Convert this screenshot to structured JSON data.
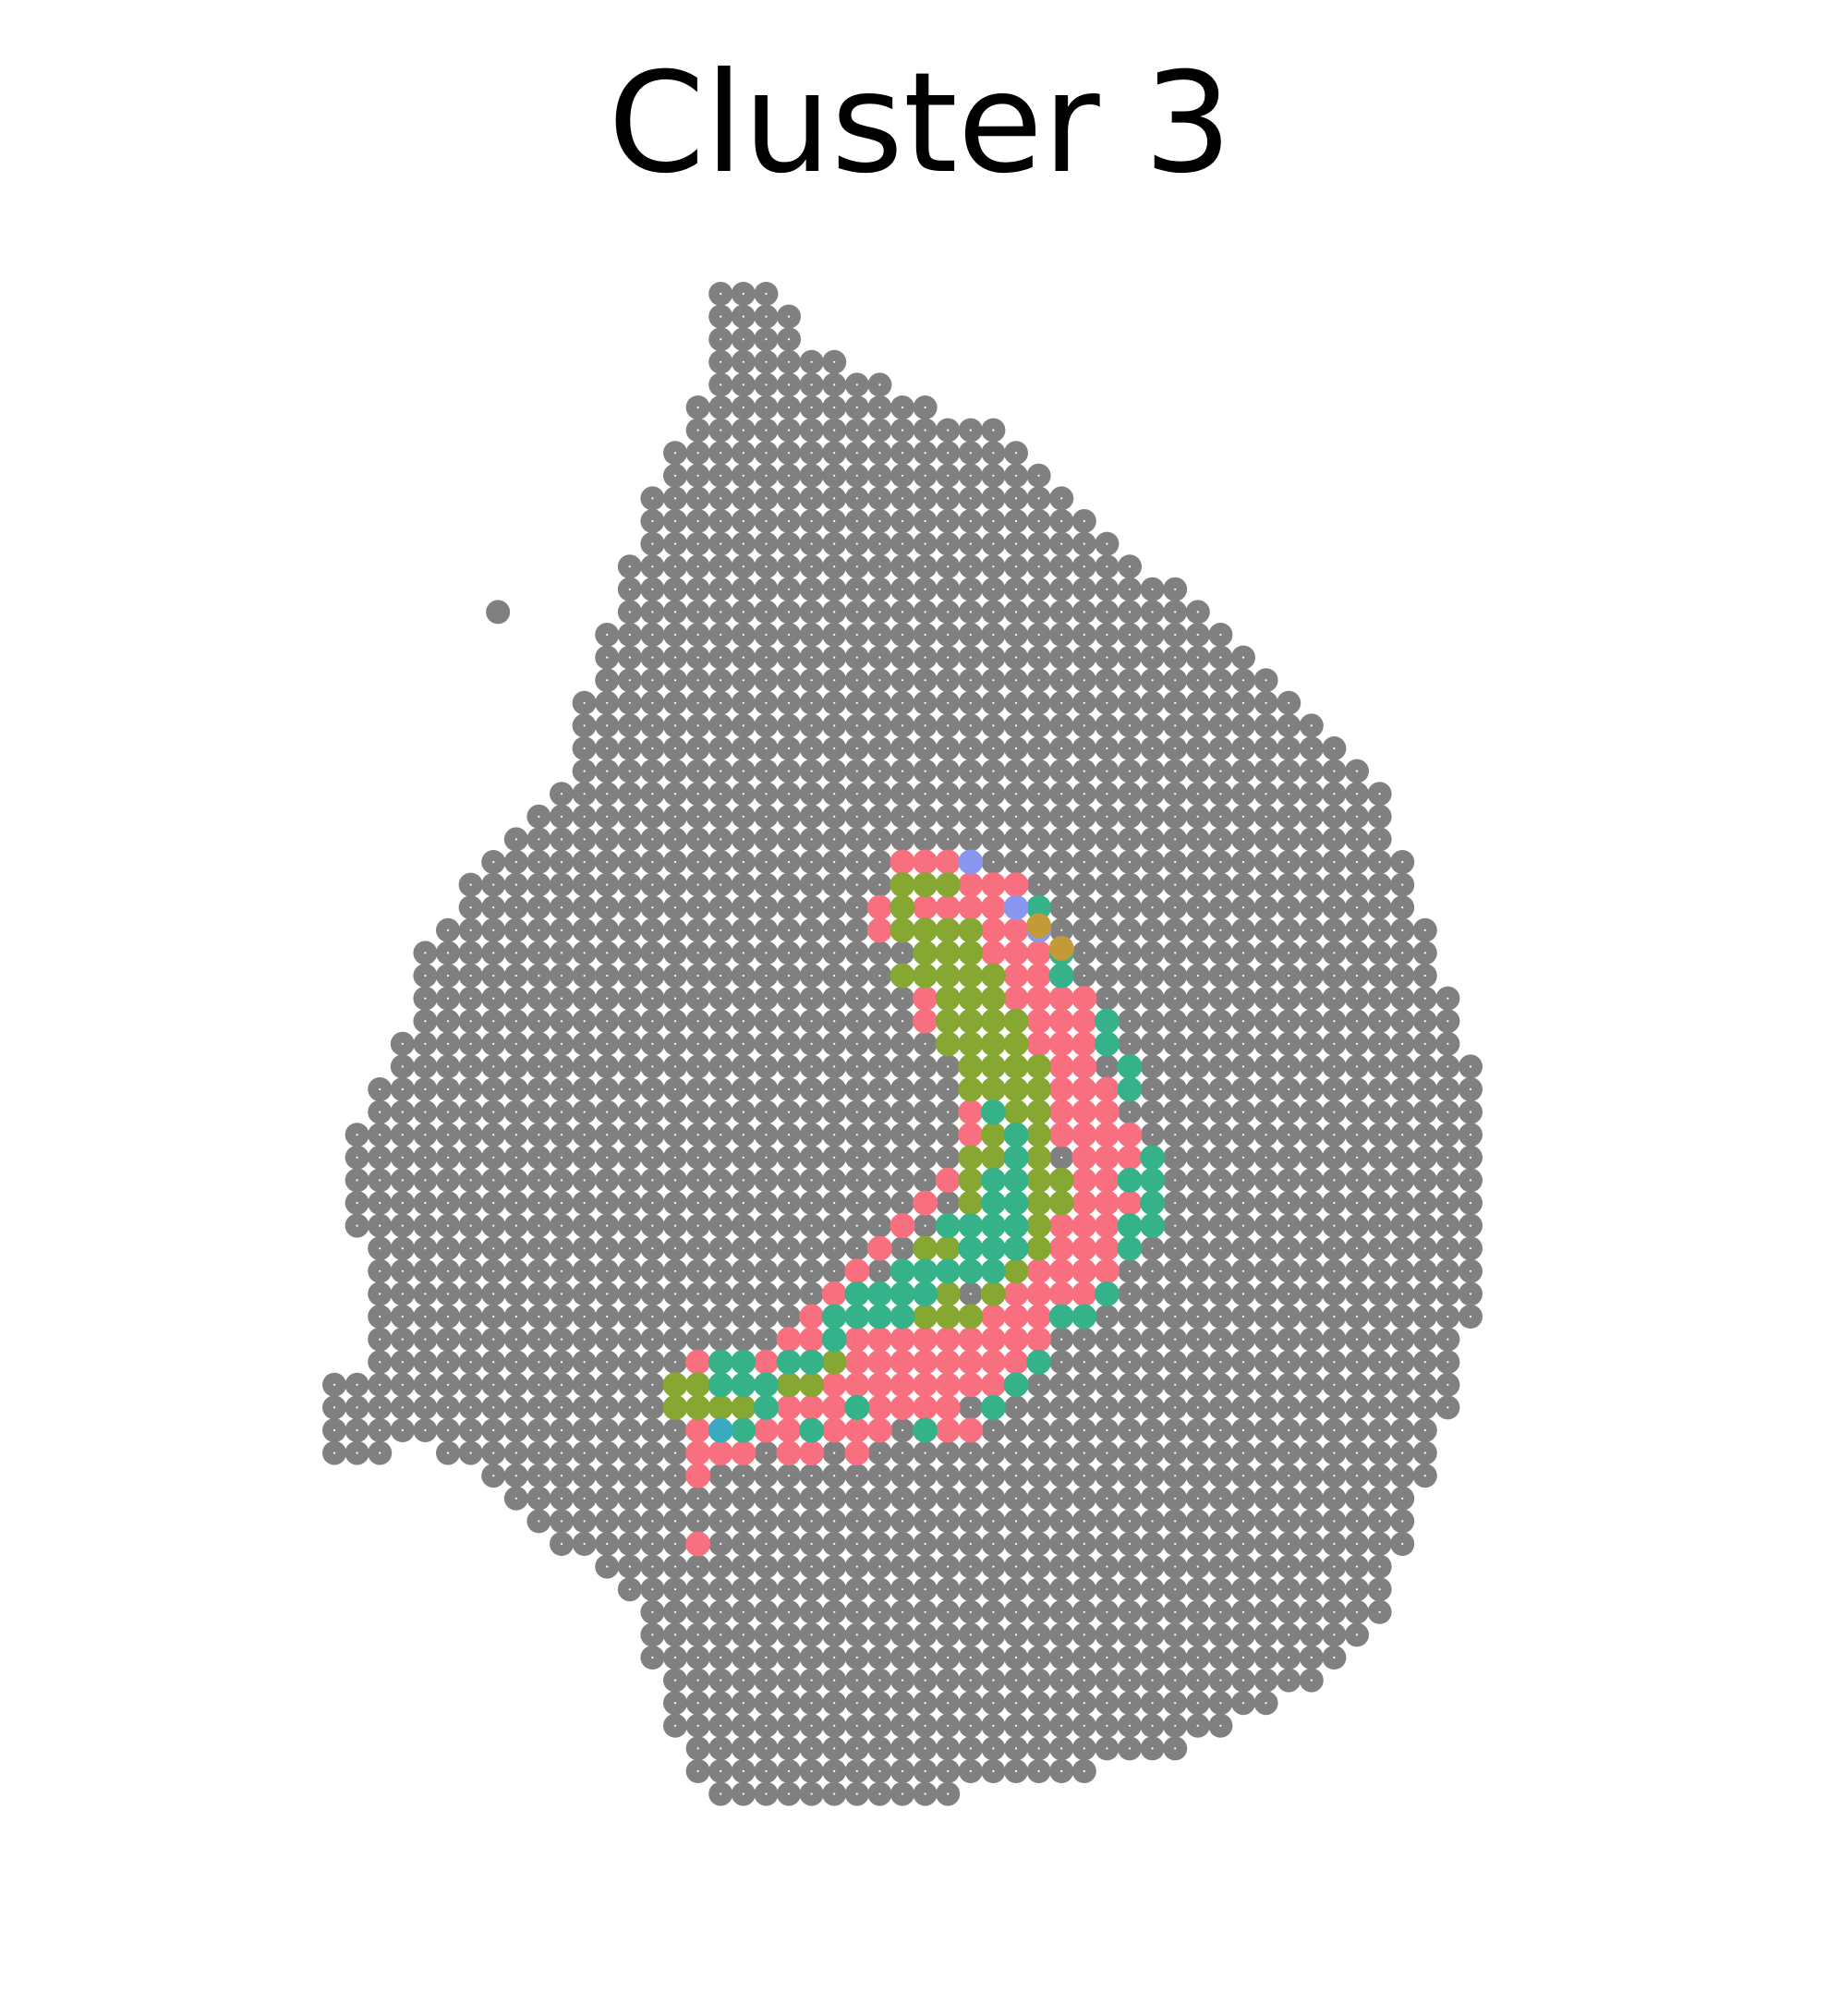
{
  "chart_data": {
    "type": "scatter",
    "title": "Cluster 3",
    "xlabel": "",
    "ylabel": "",
    "grid": false,
    "axes_visible": false,
    "legend": "none",
    "colors": {
      "background_spot": "#808080",
      "spot_center_dot": "#ffffff",
      "pink": "#f8707f",
      "olive": "#86a832",
      "teal": "#35b28a",
      "periwinkle": "#8a97f0",
      "gold": "#c49a39",
      "cyan": "#3aaac0"
    },
    "tissue_outline": [
      [
        17,
        0
      ],
      [
        20,
        0
      ],
      [
        21,
        2
      ],
      [
        23,
        3
      ],
      [
        25,
        4
      ],
      [
        27,
        5
      ],
      [
        30,
        6
      ],
      [
        32,
        8
      ],
      [
        34,
        10
      ],
      [
        36,
        12
      ],
      [
        38,
        13
      ],
      [
        40,
        15
      ],
      [
        42,
        17
      ],
      [
        44,
        19
      ],
      [
        46,
        21
      ],
      [
        47,
        24
      ],
      [
        48,
        27
      ],
      [
        49,
        30
      ],
      [
        50,
        33
      ],
      [
        51,
        37
      ],
      [
        51,
        42
      ],
      [
        50,
        46
      ],
      [
        49,
        50
      ],
      [
        48,
        53
      ],
      [
        47,
        56
      ],
      [
        46,
        59
      ],
      [
        44,
        61
      ],
      [
        42,
        62
      ],
      [
        40,
        63
      ],
      [
        38,
        64
      ],
      [
        34,
        65
      ],
      [
        28,
        66
      ],
      [
        22,
        67
      ],
      [
        18,
        67
      ],
      [
        17,
        66
      ],
      [
        16,
        65
      ],
      [
        15,
        63
      ],
      [
        14,
        60
      ],
      [
        13,
        57
      ],
      [
        12,
        56
      ],
      [
        10,
        55
      ],
      [
        8,
        53
      ],
      [
        7,
        52
      ],
      [
        5,
        51
      ],
      [
        3,
        51
      ],
      [
        2,
        52
      ],
      [
        0,
        52
      ],
      [
        0,
        48
      ],
      [
        2,
        47
      ],
      [
        2,
        43
      ],
      [
        1,
        41
      ],
      [
        1,
        37
      ],
      [
        2,
        35
      ],
      [
        3,
        33
      ],
      [
        4,
        29
      ],
      [
        6,
        26
      ],
      [
        8,
        24
      ],
      [
        10,
        22
      ],
      [
        11,
        18
      ],
      [
        12,
        15
      ],
      [
        13,
        12
      ],
      [
        14,
        9
      ],
      [
        15,
        7
      ],
      [
        16,
        5
      ],
      [
        17,
        3
      ]
    ],
    "series": [
      {
        "color": "pink",
        "points": [
          [
            25,
            25
          ],
          [
            26,
            25
          ],
          [
            27,
            25
          ],
          [
            28,
            26
          ],
          [
            29,
            26
          ],
          [
            30,
            26
          ],
          [
            24,
            27
          ],
          [
            26,
            27
          ],
          [
            27,
            27
          ],
          [
            28,
            27
          ],
          [
            29,
            27
          ],
          [
            30,
            28
          ],
          [
            24,
            28
          ],
          [
            25,
            28
          ],
          [
            29,
            28
          ],
          [
            31,
            28
          ],
          [
            29,
            29
          ],
          [
            30,
            29
          ],
          [
            31,
            29
          ],
          [
            30,
            30
          ],
          [
            31,
            30
          ],
          [
            32,
            30
          ],
          [
            26,
            31
          ],
          [
            30,
            31
          ],
          [
            31,
            31
          ],
          [
            32,
            31
          ],
          [
            33,
            31
          ],
          [
            26,
            32
          ],
          [
            30,
            32
          ],
          [
            31,
            32
          ],
          [
            32,
            32
          ],
          [
            33,
            32
          ],
          [
            31,
            33
          ],
          [
            32,
            33
          ],
          [
            33,
            33
          ],
          [
            32,
            34
          ],
          [
            33,
            34
          ],
          [
            32,
            35
          ],
          [
            33,
            35
          ],
          [
            34,
            35
          ],
          [
            28,
            36
          ],
          [
            32,
            36
          ],
          [
            33,
            36
          ],
          [
            34,
            36
          ],
          [
            28,
            37
          ],
          [
            32,
            37
          ],
          [
            33,
            37
          ],
          [
            34,
            37
          ],
          [
            35,
            37
          ],
          [
            33,
            38
          ],
          [
            34,
            38
          ],
          [
            35,
            38
          ],
          [
            27,
            39
          ],
          [
            33,
            39
          ],
          [
            34,
            39
          ],
          [
            26,
            40
          ],
          [
            33,
            40
          ],
          [
            34,
            40
          ],
          [
            35,
            40
          ],
          [
            25,
            41
          ],
          [
            32,
            41
          ],
          [
            33,
            41
          ],
          [
            34,
            41
          ],
          [
            24,
            42
          ],
          [
            32,
            42
          ],
          [
            33,
            42
          ],
          [
            34,
            42
          ],
          [
            23,
            43
          ],
          [
            31,
            43
          ],
          [
            32,
            43
          ],
          [
            33,
            43
          ],
          [
            34,
            43
          ],
          [
            22,
            44
          ],
          [
            30,
            44
          ],
          [
            31,
            44
          ],
          [
            32,
            44
          ],
          [
            33,
            44
          ],
          [
            21,
            45
          ],
          [
            28,
            45
          ],
          [
            29,
            45
          ],
          [
            30,
            45
          ],
          [
            31,
            45
          ],
          [
            32,
            45
          ],
          [
            20,
            46
          ],
          [
            21,
            46
          ],
          [
            22,
            46
          ],
          [
            23,
            46
          ],
          [
            24,
            46
          ],
          [
            25,
            46
          ],
          [
            26,
            46
          ],
          [
            27,
            46
          ],
          [
            28,
            46
          ],
          [
            29,
            46
          ],
          [
            30,
            46
          ],
          [
            31,
            46
          ],
          [
            16,
            47
          ],
          [
            19,
            47
          ],
          [
            20,
            47
          ],
          [
            21,
            47
          ],
          [
            22,
            47
          ],
          [
            23,
            47
          ],
          [
            24,
            47
          ],
          [
            25,
            47
          ],
          [
            26,
            47
          ],
          [
            27,
            47
          ],
          [
            28,
            47
          ],
          [
            29,
            47
          ],
          [
            30,
            47
          ],
          [
            17,
            48
          ],
          [
            20,
            48
          ],
          [
            21,
            48
          ],
          [
            22,
            48
          ],
          [
            23,
            48
          ],
          [
            24,
            48
          ],
          [
            25,
            48
          ],
          [
            26,
            48
          ],
          [
            27,
            48
          ],
          [
            28,
            48
          ],
          [
            29,
            48
          ],
          [
            19,
            49
          ],
          [
            20,
            49
          ],
          [
            21,
            49
          ],
          [
            22,
            49
          ],
          [
            23,
            49
          ],
          [
            24,
            49
          ],
          [
            25,
            49
          ],
          [
            26,
            49
          ],
          [
            27,
            49
          ],
          [
            16,
            50
          ],
          [
            19,
            50
          ],
          [
            20,
            50
          ],
          [
            21,
            50
          ],
          [
            22,
            50
          ],
          [
            23,
            50
          ],
          [
            24,
            50
          ],
          [
            26,
            50
          ],
          [
            27,
            50
          ],
          [
            28,
            50
          ],
          [
            16,
            51
          ],
          [
            17,
            51
          ],
          [
            18,
            51
          ],
          [
            20,
            51
          ],
          [
            21,
            51
          ],
          [
            23,
            51
          ],
          [
            16,
            52
          ],
          [
            16,
            55
          ]
        ]
      },
      {
        "color": "olive",
        "points": [
          [
            25,
            26
          ],
          [
            26,
            26
          ],
          [
            27,
            26
          ],
          [
            25,
            27
          ],
          [
            25,
            28
          ],
          [
            26,
            28
          ],
          [
            27,
            28
          ],
          [
            28,
            28
          ],
          [
            26,
            29
          ],
          [
            27,
            29
          ],
          [
            28,
            29
          ],
          [
            25,
            30
          ],
          [
            26,
            30
          ],
          [
            27,
            30
          ],
          [
            28,
            30
          ],
          [
            29,
            30
          ],
          [
            27,
            31
          ],
          [
            28,
            31
          ],
          [
            29,
            31
          ],
          [
            27,
            32
          ],
          [
            28,
            32
          ],
          [
            29,
            32
          ],
          [
            30,
            32
          ],
          [
            27,
            33
          ],
          [
            28,
            33
          ],
          [
            29,
            33
          ],
          [
            30,
            33
          ],
          [
            28,
            34
          ],
          [
            29,
            34
          ],
          [
            30,
            34
          ],
          [
            31,
            34
          ],
          [
            28,
            35
          ],
          [
            29,
            35
          ],
          [
            30,
            35
          ],
          [
            31,
            35
          ],
          [
            29,
            36
          ],
          [
            30,
            36
          ],
          [
            31,
            36
          ],
          [
            29,
            37
          ],
          [
            30,
            37
          ],
          [
            31,
            37
          ],
          [
            28,
            38
          ],
          [
            29,
            38
          ],
          [
            31,
            38
          ],
          [
            28,
            39
          ],
          [
            31,
            39
          ],
          [
            32,
            39
          ],
          [
            28,
            40
          ],
          [
            31,
            40
          ],
          [
            32,
            40
          ],
          [
            29,
            41
          ],
          [
            31,
            41
          ],
          [
            26,
            42
          ],
          [
            27,
            42
          ],
          [
            31,
            42
          ],
          [
            30,
            43
          ],
          [
            29,
            44
          ],
          [
            28,
            45
          ],
          [
            27,
            45
          ],
          [
            27,
            44
          ],
          [
            26,
            45
          ],
          [
            16,
            48
          ],
          [
            15,
            48
          ],
          [
            15,
            49
          ],
          [
            16,
            49
          ],
          [
            17,
            49
          ],
          [
            18,
            49
          ],
          [
            21,
            48
          ],
          [
            22,
            47
          ],
          [
            20,
            48
          ]
        ]
      },
      {
        "color": "teal",
        "points": [
          [
            31,
            27
          ],
          [
            32,
            29
          ],
          [
            32,
            30
          ],
          [
            34,
            32
          ],
          [
            34,
            33
          ],
          [
            35,
            34
          ],
          [
            35,
            35
          ],
          [
            29,
            36
          ],
          [
            30,
            37
          ],
          [
            30,
            38
          ],
          [
            30,
            39
          ],
          [
            29,
            39
          ],
          [
            29,
            40
          ],
          [
            30,
            40
          ],
          [
            27,
            41
          ],
          [
            28,
            41
          ],
          [
            29,
            41
          ],
          [
            30,
            41
          ],
          [
            36,
            38
          ],
          [
            36,
            39
          ],
          [
            36,
            40
          ],
          [
            35,
            39
          ],
          [
            35,
            41
          ],
          [
            36,
            41
          ],
          [
            35,
            42
          ],
          [
            27,
            43
          ],
          [
            28,
            43
          ],
          [
            29,
            43
          ],
          [
            26,
            43
          ],
          [
            25,
            43
          ],
          [
            24,
            44
          ],
          [
            25,
            44
          ],
          [
            26,
            44
          ],
          [
            23,
            44
          ],
          [
            23,
            45
          ],
          [
            24,
            45
          ],
          [
            25,
            45
          ],
          [
            22,
            45
          ],
          [
            26,
            44
          ],
          [
            28,
            42
          ],
          [
            29,
            42
          ],
          [
            30,
            42
          ],
          [
            22,
            46
          ],
          [
            21,
            47
          ],
          [
            20,
            47
          ],
          [
            19,
            48
          ],
          [
            18,
            48
          ],
          [
            17,
            47
          ],
          [
            18,
            47
          ],
          [
            17,
            48
          ],
          [
            19,
            49
          ],
          [
            18,
            50
          ],
          [
            21,
            50
          ],
          [
            23,
            49
          ],
          [
            29,
            49
          ],
          [
            30,
            48
          ],
          [
            31,
            47
          ],
          [
            32,
            45
          ],
          [
            33,
            45
          ],
          [
            34,
            44
          ],
          [
            26,
            50
          ]
        ]
      },
      {
        "color": "periwinkle",
        "points": [
          [
            28,
            25
          ],
          [
            30,
            27
          ],
          [
            31,
            28
          ]
        ]
      },
      {
        "color": "gold",
        "points": [
          [
            31,
            27.8
          ],
          [
            32,
            28.8
          ]
        ]
      },
      {
        "color": "cyan",
        "points": [
          [
            17,
            50
          ]
        ]
      }
    ]
  }
}
